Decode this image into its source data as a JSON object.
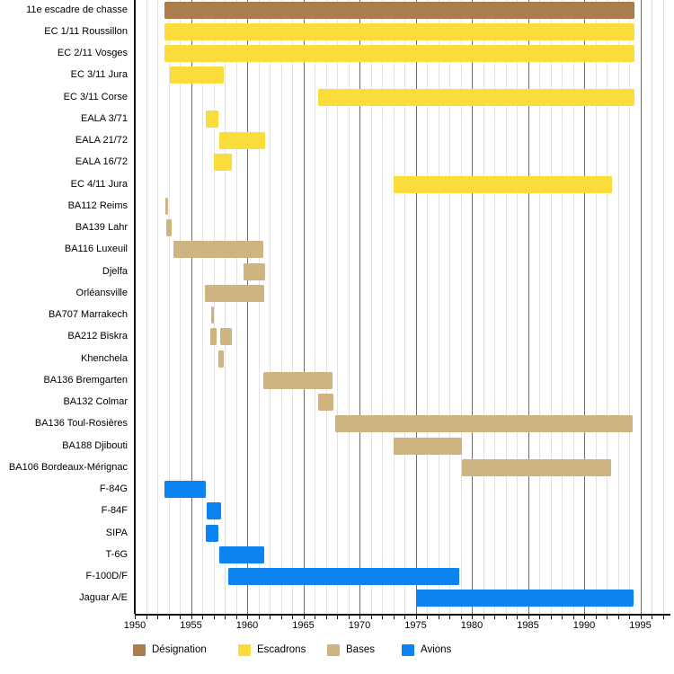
{
  "chart_data": {
    "type": "bar",
    "variant": "gantt-timeline",
    "title": "",
    "xlabel": "",
    "ylabel": "",
    "axis": {
      "x_min": 1950,
      "x_max": 1997,
      "major_tick_years": [
        1950,
        1955,
        1960,
        1965,
        1970,
        1975,
        1980,
        1985,
        1990,
        1995
      ],
      "grid": "on"
    },
    "categories": [
      "11e escadre de chasse",
      "EC 1/11 Roussillon",
      "EC 2/11 Vosges",
      "EC 3/11 Jura",
      "EC 3/11 Corse",
      "EALA 3/71",
      "EALA 21/72",
      "EALA 16/72",
      "EC 4/11 Jura",
      "BA112 Reims",
      "BA139 Lahr",
      "BA116 Luxeuil",
      "Djelfa",
      "Orléansville",
      "BA707 Marrakech",
      "BA212 Biskra",
      "Khenchela",
      "BA136 Bremgarten",
      "BA132 Colmar",
      "BA136 Toul-Rosières",
      "BA188 Djibouti",
      "BA106 Bordeaux-Mérignac",
      "F-84G",
      "F-84F",
      "SIPA",
      "T-6G",
      "F-100D/F",
      "Jaguar A/E"
    ],
    "rows": [
      {
        "label": "11e escadre de chasse",
        "group": "designation",
        "segments": [
          [
            1952.6,
            1994.5
          ]
        ]
      },
      {
        "label": "EC 1/11 Roussillon",
        "group": "escadron",
        "segments": [
          [
            1952.6,
            1994.5
          ]
        ]
      },
      {
        "label": "EC 2/11 Vosges",
        "group": "escadron",
        "segments": [
          [
            1952.6,
            1994.5
          ]
        ]
      },
      {
        "label": "EC 3/11 Jura",
        "group": "escadron",
        "segments": [
          [
            1953.1,
            1957.9
          ]
        ]
      },
      {
        "label": "EC 3/11 Corse",
        "group": "escadron",
        "segments": [
          [
            1966.3,
            1994.5
          ]
        ]
      },
      {
        "label": "EALA 3/71",
        "group": "escadron",
        "segments": [
          [
            1956.3,
            1957.4
          ]
        ]
      },
      {
        "label": "EALA 21/72",
        "group": "escadron",
        "segments": [
          [
            1957.5,
            1961.6
          ]
        ]
      },
      {
        "label": "EALA 16/72",
        "group": "escadron",
        "segments": [
          [
            1957.0,
            1958.6
          ]
        ]
      },
      {
        "label": "EC 4/11 Jura",
        "group": "escadron",
        "segments": [
          [
            1973.0,
            1992.5
          ]
        ]
      },
      {
        "label": "BA112 Reims",
        "group": "base",
        "segments": [
          [
            1952.7,
            1952.95
          ]
        ]
      },
      {
        "label": "BA139 Lahr",
        "group": "base",
        "segments": [
          [
            1952.8,
            1953.3
          ]
        ]
      },
      {
        "label": "BA116 Luxeuil",
        "group": "base",
        "segments": [
          [
            1953.4,
            1961.4
          ]
        ]
      },
      {
        "label": "Djelfa",
        "group": "base",
        "segments": [
          [
            1959.7,
            1961.6
          ]
        ]
      },
      {
        "label": "Orléansville",
        "group": "base",
        "segments": [
          [
            1956.2,
            1961.5
          ]
        ]
      },
      {
        "label": "BA707 Marrakech",
        "group": "base",
        "segments": [
          [
            1956.8,
            1957.05
          ]
        ]
      },
      {
        "label": "BA212 Biskra",
        "group": "base",
        "segments": [
          [
            1956.7,
            1957.25
          ],
          [
            1957.6,
            1958.6
          ]
        ]
      },
      {
        "label": "Khenchela",
        "group": "base",
        "segments": [
          [
            1957.4,
            1957.9
          ]
        ]
      },
      {
        "label": "BA136 Bremgarten",
        "group": "base",
        "segments": [
          [
            1961.4,
            1967.6
          ]
        ]
      },
      {
        "label": "BA132 Colmar",
        "group": "base",
        "segments": [
          [
            1966.3,
            1967.7
          ]
        ]
      },
      {
        "label": "BA136 Toul-Rosières",
        "group": "base",
        "segments": [
          [
            1967.8,
            1994.3
          ]
        ]
      },
      {
        "label": "BA188 Djibouti",
        "group": "base",
        "segments": [
          [
            1973.0,
            1979.1
          ]
        ]
      },
      {
        "label": "BA106 Bordeaux-Mérignac",
        "group": "base",
        "segments": [
          [
            1979.1,
            1992.4
          ]
        ]
      },
      {
        "label": "F-84G",
        "group": "avion",
        "segments": [
          [
            1952.6,
            1956.3
          ]
        ]
      },
      {
        "label": "F-84F",
        "group": "avion",
        "segments": [
          [
            1956.4,
            1957.7
          ]
        ]
      },
      {
        "label": "SIPA",
        "group": "avion",
        "segments": [
          [
            1956.3,
            1957.4
          ]
        ]
      },
      {
        "label": "T-6G",
        "group": "avion",
        "segments": [
          [
            1957.5,
            1961.5
          ]
        ]
      },
      {
        "label": "F-100D/F",
        "group": "avion",
        "segments": [
          [
            1958.3,
            1978.9
          ]
        ]
      },
      {
        "label": "Jaguar A/E",
        "group": "avion",
        "segments": [
          [
            1975.0,
            1994.4
          ]
        ]
      }
    ],
    "group_colors": {
      "designation": "#ab7c4c",
      "escadron": "#fadc3a",
      "base": "#cfb381",
      "avion": "#0b84f1"
    },
    "legend": {
      "position": "bottom",
      "entries": [
        {
          "label": "Désignation",
          "group": "designation",
          "color": "#ab7c4c"
        },
        {
          "label": "Escadrons",
          "group": "escadron",
          "color": "#fadc3a"
        },
        {
          "label": "Bases",
          "group": "base",
          "color": "#cfb381"
        },
        {
          "label": "Avions",
          "group": "avion",
          "color": "#0b84f1"
        }
      ]
    }
  }
}
